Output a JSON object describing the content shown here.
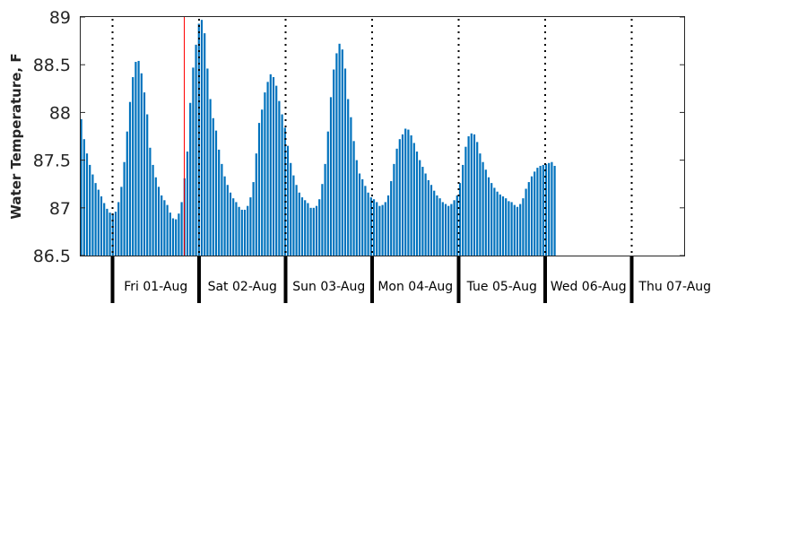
{
  "chart_data": {
    "type": "bar",
    "title": "",
    "xlabel": "",
    "ylabel": "Water Temperature, F",
    "ylim": [
      86.5,
      89
    ],
    "yticks": [
      "86.5",
      "87",
      "87.5",
      "88",
      "88.5",
      "89"
    ],
    "grid": false,
    "legend": "none",
    "bar_color": "#0072BD",
    "marker_color": "#FF0000",
    "day_labels": [
      "Fri 01-Aug",
      "Sat 02-Aug",
      "Sun 03-Aug",
      "Mon 04-Aug",
      "Tue 05-Aug",
      "Wed 06-Aug",
      "Thu 07-Aug"
    ],
    "series": [
      {
        "values": [
          87.93,
          87.72,
          87.57,
          87.45,
          87.35,
          87.26,
          87.19,
          87.12,
          87.05,
          86.99,
          86.95,
          86.94,
          86.96,
          87.06,
          87.22,
          87.48,
          87.8,
          88.11,
          88.37,
          88.53,
          88.54,
          88.41,
          88.21,
          87.98,
          87.63,
          87.45,
          87.32,
          87.22,
          87.13,
          87.08,
          87.03,
          86.95,
          86.89,
          86.88,
          86.94,
          87.06,
          87.31,
          87.59,
          88.1,
          88.47,
          88.71,
          88.93,
          88.97,
          88.83,
          88.46,
          88.14,
          87.94,
          87.81,
          87.61,
          87.46,
          87.33,
          87.24,
          87.16,
          87.1,
          87.06,
          87.01,
          86.98,
          86.98,
          87.02,
          87.11,
          87.27,
          87.57,
          87.89,
          88.03,
          88.21,
          88.32,
          88.4,
          88.37,
          88.28,
          88.12,
          87.98,
          87.84,
          87.65,
          87.47,
          87.34,
          87.24,
          87.16,
          87.11,
          87.08,
          87.05,
          87.0,
          87.0,
          87.02,
          87.09,
          87.25,
          87.46,
          87.8,
          88.16,
          88.45,
          88.62,
          88.72,
          88.66,
          88.46,
          88.14,
          87.95,
          87.7,
          87.5,
          87.36,
          87.3,
          87.23,
          87.16,
          87.11,
          87.09,
          87.06,
          87.02,
          87.03,
          87.06,
          87.13,
          87.28,
          87.46,
          87.62,
          87.72,
          87.77,
          87.83,
          87.82,
          87.76,
          87.68,
          87.59,
          87.5,
          87.43,
          87.36,
          87.29,
          87.24,
          87.18,
          87.13,
          87.1,
          87.06,
          87.04,
          87.02,
          87.04,
          87.08,
          87.13,
          87.26,
          87.45,
          87.64,
          87.75,
          87.78,
          87.77,
          87.69,
          87.57,
          87.48,
          87.4,
          87.32,
          87.26,
          87.21,
          87.17,
          87.14,
          87.12,
          87.1,
          87.07,
          87.06,
          87.03,
          87.01,
          87.04,
          87.1,
          87.2,
          87.27,
          87.33,
          87.38,
          87.42,
          87.44,
          87.45,
          87.46,
          87.47,
          87.48,
          87.44
        ]
      }
    ]
  }
}
